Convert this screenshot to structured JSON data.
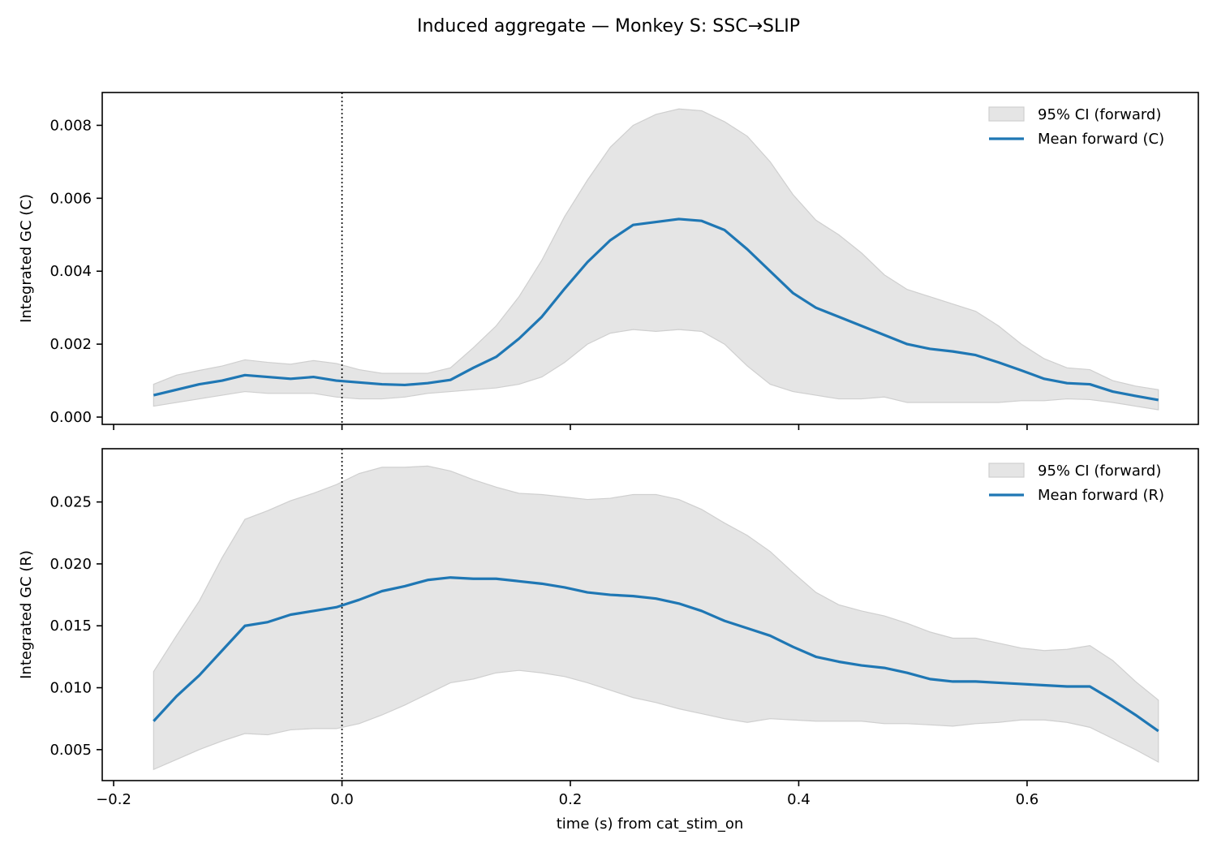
{
  "figure": {
    "suptitle": "Induced aggregate — Monkey S: SSC→SLIP",
    "xlabel": "time (s) from cat_stim_on"
  },
  "colors": {
    "mean_line": "#1f77b4",
    "ci_fill": "#e5e5e5",
    "ci_edge": "#cfcfcf",
    "axes": "#000000",
    "background": "#ffffff"
  },
  "chart_data": [
    {
      "type": "line",
      "panel": "top",
      "ylabel": "Integrated GC (C)",
      "xlim": [
        -0.21,
        0.75
      ],
      "ylim": [
        -0.0002,
        0.0089
      ],
      "xticks": [
        -0.2,
        0.0,
        0.2,
        0.4,
        0.6
      ],
      "xtick_labels": [
        "−0.2",
        "0.0",
        "0.2",
        "0.4",
        "0.6"
      ],
      "show_xtick_labels": false,
      "yticks": [
        0.0,
        0.002,
        0.004,
        0.006,
        0.008
      ],
      "ytick_labels": [
        "0.000",
        "0.002",
        "0.004",
        "0.006",
        "0.008"
      ],
      "vline_x": 0.0,
      "grid": false,
      "legend_position": "top-right",
      "x": [
        -0.165,
        -0.145,
        -0.125,
        -0.105,
        -0.085,
        -0.065,
        -0.045,
        -0.025,
        -0.005,
        0.015,
        0.035,
        0.055,
        0.075,
        0.095,
        0.115,
        0.135,
        0.155,
        0.175,
        0.195,
        0.215,
        0.235,
        0.255,
        0.275,
        0.295,
        0.315,
        0.335,
        0.355,
        0.375,
        0.395,
        0.415,
        0.435,
        0.455,
        0.475,
        0.495,
        0.515,
        0.535,
        0.555,
        0.575,
        0.595,
        0.615,
        0.635,
        0.655,
        0.675,
        0.695,
        0.715
      ],
      "series": [
        {
          "name": "Mean forward (C)",
          "role": "mean",
          "values": [
            0.0006,
            0.00075,
            0.0009,
            0.001,
            0.00115,
            0.0011,
            0.00105,
            0.0011,
            0.001,
            0.00095,
            0.0009,
            0.00088,
            0.00093,
            0.00102,
            0.00135,
            0.00165,
            0.00215,
            0.00275,
            0.00352,
            0.00425,
            0.00485,
            0.00527,
            0.00535,
            0.00543,
            0.00538,
            0.00513,
            0.0046,
            0.004,
            0.0034,
            0.003,
            0.00275,
            0.0025,
            0.00225,
            0.002,
            0.00187,
            0.0018,
            0.0017,
            0.0015,
            0.00128,
            0.00105,
            0.00093,
            0.0009,
            0.0007,
            0.00058,
            0.00047
          ]
        },
        {
          "name": "95% CI (forward)",
          "role": "ci",
          "lower": [
            0.0003,
            0.0004,
            0.0005,
            0.0006,
            0.0007,
            0.00065,
            0.00065,
            0.00065,
            0.00055,
            0.0005,
            0.0005,
            0.00055,
            0.00065,
            0.0007,
            0.00075,
            0.0008,
            0.0009,
            0.0011,
            0.0015,
            0.002,
            0.0023,
            0.0024,
            0.00235,
            0.0024,
            0.00235,
            0.002,
            0.0014,
            0.0009,
            0.0007,
            0.0006,
            0.0005,
            0.0005,
            0.00055,
            0.0004,
            0.0004,
            0.0004,
            0.0004,
            0.0004,
            0.00045,
            0.00045,
            0.0005,
            0.00048,
            0.0004,
            0.0003,
            0.0002
          ],
          "upper": [
            0.0009,
            0.00115,
            0.00128,
            0.0014,
            0.00157,
            0.0015,
            0.00145,
            0.00155,
            0.00147,
            0.0013,
            0.0012,
            0.0012,
            0.0012,
            0.00135,
            0.0019,
            0.0025,
            0.0033,
            0.0043,
            0.0055,
            0.0065,
            0.0074,
            0.008,
            0.0083,
            0.00845,
            0.0084,
            0.0081,
            0.0077,
            0.007,
            0.0061,
            0.0054,
            0.005,
            0.0045,
            0.0039,
            0.0035,
            0.0033,
            0.0031,
            0.0029,
            0.0025,
            0.002,
            0.0016,
            0.00135,
            0.0013,
            0.001,
            0.00085,
            0.00075
          ]
        }
      ]
    },
    {
      "type": "line",
      "panel": "bottom",
      "ylabel": "Integrated GC (R)",
      "xlim": [
        -0.21,
        0.75
      ],
      "ylim": [
        0.0025,
        0.0293
      ],
      "xticks": [
        -0.2,
        0.0,
        0.2,
        0.4,
        0.6
      ],
      "xtick_labels": [
        "−0.2",
        "0.0",
        "0.2",
        "0.4",
        "0.6"
      ],
      "show_xtick_labels": true,
      "yticks": [
        0.005,
        0.01,
        0.015,
        0.02,
        0.025
      ],
      "ytick_labels": [
        "0.005",
        "0.010",
        "0.015",
        "0.020",
        "0.025"
      ],
      "vline_x": 0.0,
      "grid": false,
      "legend_position": "top-right",
      "x": [
        -0.165,
        -0.145,
        -0.125,
        -0.105,
        -0.085,
        -0.065,
        -0.045,
        -0.025,
        -0.005,
        0.015,
        0.035,
        0.055,
        0.075,
        0.095,
        0.115,
        0.135,
        0.155,
        0.175,
        0.195,
        0.215,
        0.235,
        0.255,
        0.275,
        0.295,
        0.315,
        0.335,
        0.355,
        0.375,
        0.395,
        0.415,
        0.435,
        0.455,
        0.475,
        0.495,
        0.515,
        0.535,
        0.555,
        0.575,
        0.595,
        0.615,
        0.635,
        0.655,
        0.675,
        0.695,
        0.715
      ],
      "series": [
        {
          "name": "Mean forward (R)",
          "role": "mean",
          "values": [
            0.0073,
            0.0093,
            0.011,
            0.013,
            0.015,
            0.0153,
            0.0159,
            0.0162,
            0.0165,
            0.0171,
            0.0178,
            0.0182,
            0.0187,
            0.0189,
            0.0188,
            0.0188,
            0.0186,
            0.0184,
            0.0181,
            0.0177,
            0.0175,
            0.0174,
            0.0172,
            0.0168,
            0.0162,
            0.0154,
            0.0148,
            0.0142,
            0.0133,
            0.0125,
            0.0121,
            0.0118,
            0.0116,
            0.0112,
            0.0107,
            0.0105,
            0.0105,
            0.0104,
            0.0103,
            0.0102,
            0.0101,
            0.0101,
            0.009,
            0.0078,
            0.0065
          ]
        },
        {
          "name": "95% CI (forward)",
          "role": "ci",
          "lower": [
            0.0034,
            0.0042,
            0.005,
            0.0057,
            0.0063,
            0.0062,
            0.0066,
            0.0067,
            0.0067,
            0.0071,
            0.0078,
            0.0086,
            0.0095,
            0.0104,
            0.0107,
            0.0112,
            0.0114,
            0.0112,
            0.0109,
            0.0104,
            0.0098,
            0.0092,
            0.0088,
            0.0083,
            0.0079,
            0.0075,
            0.0072,
            0.0075,
            0.0074,
            0.0073,
            0.0073,
            0.0073,
            0.0071,
            0.0071,
            0.007,
            0.0069,
            0.0071,
            0.0072,
            0.0074,
            0.0074,
            0.0072,
            0.0068,
            0.0059,
            0.005,
            0.004
          ],
          "upper": [
            0.0113,
            0.0142,
            0.017,
            0.0205,
            0.0236,
            0.0243,
            0.0251,
            0.0257,
            0.0264,
            0.0273,
            0.0278,
            0.0278,
            0.0279,
            0.0275,
            0.0268,
            0.0262,
            0.0257,
            0.0256,
            0.0254,
            0.0252,
            0.0253,
            0.0256,
            0.0256,
            0.0252,
            0.0244,
            0.0233,
            0.0223,
            0.021,
            0.0193,
            0.0177,
            0.0167,
            0.0162,
            0.0158,
            0.0152,
            0.0145,
            0.014,
            0.014,
            0.0136,
            0.0132,
            0.013,
            0.0131,
            0.0134,
            0.0122,
            0.0105,
            0.009
          ]
        }
      ]
    }
  ]
}
